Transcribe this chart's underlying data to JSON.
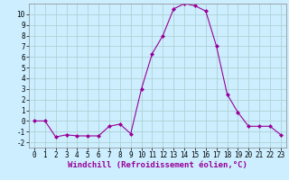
{
  "x": [
    0,
    1,
    2,
    3,
    4,
    5,
    6,
    7,
    8,
    9,
    10,
    11,
    12,
    13,
    14,
    15,
    16,
    17,
    18,
    19,
    20,
    21,
    22,
    23
  ],
  "y": [
    0,
    0,
    -1.5,
    -1.3,
    -1.4,
    -1.4,
    -1.4,
    -0.5,
    -0.3,
    -1.2,
    3.0,
    6.3,
    8.0,
    10.5,
    11.0,
    10.8,
    10.3,
    7.0,
    2.5,
    0.8,
    -0.5,
    -0.5,
    -0.5,
    -1.3
  ],
  "line_color": "#990099",
  "marker": "D",
  "marker_size": 2,
  "bg_color": "#cceeff",
  "grid_color": "#aacccc",
  "xlabel": "Windchill (Refroidissement éolien,°C)",
  "xlim": [
    -0.5,
    23.5
  ],
  "ylim": [
    -2.5,
    11.0
  ],
  "xticks": [
    0,
    1,
    2,
    3,
    4,
    5,
    6,
    7,
    8,
    9,
    10,
    11,
    12,
    13,
    14,
    15,
    16,
    17,
    18,
    19,
    20,
    21,
    22,
    23
  ],
  "yticks": [
    -2,
    -1,
    0,
    1,
    2,
    3,
    4,
    5,
    6,
    7,
    8,
    9,
    10
  ],
  "xlabel_fontsize": 6.5,
  "tick_fontsize": 5.5
}
